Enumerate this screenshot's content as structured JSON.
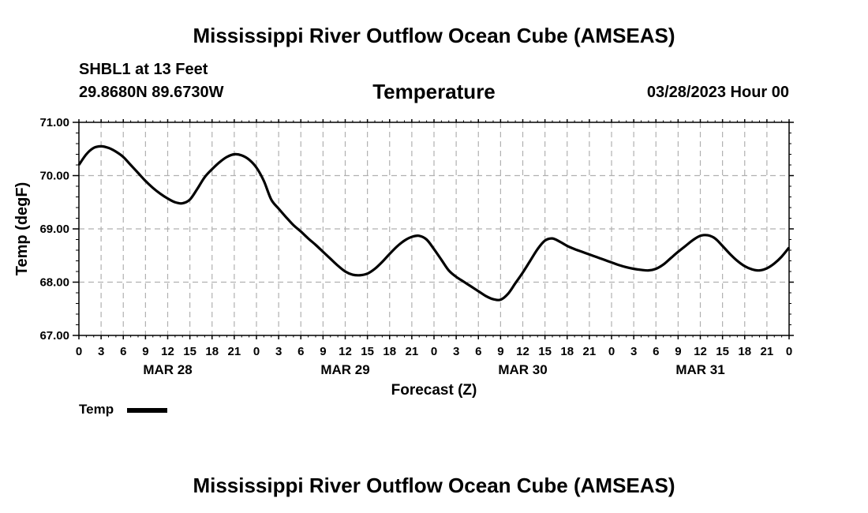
{
  "header": {
    "title": "Mississippi River Outflow Ocean Cube (AMSEAS)",
    "station": "SHBL1 at 13 Feet",
    "coords": "29.8680N  89.6730W",
    "date": "03/28/2023 Hour 00"
  },
  "footer": {
    "title": "Mississippi River Outflow Ocean Cube (AMSEAS)"
  },
  "chart_data": {
    "type": "line",
    "title": "Temperature",
    "xlabel": "Forecast (Z)",
    "ylabel": "Temp (degF)",
    "ylim": [
      67,
      71
    ],
    "xlim": [
      0,
      96
    ],
    "yticks": [
      67,
      68,
      69,
      70,
      71
    ],
    "ytick_labels": [
      "67.00",
      "68.00",
      "69.00",
      "70.00",
      "71.00"
    ],
    "xtick_hours": [
      0,
      3,
      6,
      9,
      12,
      15,
      18,
      21,
      24,
      27,
      30,
      33,
      36,
      39,
      42,
      45,
      48,
      51,
      54,
      57,
      60,
      63,
      66,
      69,
      72,
      75,
      78,
      81,
      84,
      87,
      90,
      93,
      96
    ],
    "xtick_labels": [
      "0",
      "3",
      "6",
      "9",
      "12",
      "15",
      "18",
      "21",
      "0",
      "3",
      "6",
      "9",
      "12",
      "15",
      "18",
      "21",
      "0",
      "3",
      "6",
      "9",
      "12",
      "15",
      "18",
      "21",
      "0",
      "3",
      "6",
      "9",
      "12",
      "15",
      "18",
      "21",
      "0"
    ],
    "day_labels": [
      {
        "label": "MAR 28",
        "hour": 12
      },
      {
        "label": "MAR 29",
        "hour": 36
      },
      {
        "label": "MAR 30",
        "hour": 60
      },
      {
        "label": "MAR 31",
        "hour": 84
      }
    ],
    "grid": true,
    "legend": "bottom-left",
    "series": [
      {
        "name": "Temp",
        "color": "#000000",
        "x": [
          0,
          1,
          2,
          3,
          4,
          5,
          6,
          7,
          8,
          9,
          10,
          11,
          12,
          13,
          14,
          15,
          16,
          17,
          18,
          19,
          20,
          21,
          22,
          23,
          24,
          25,
          26,
          27,
          28,
          29,
          30,
          31,
          32,
          33,
          34,
          35,
          36,
          37,
          38,
          39,
          40,
          41,
          42,
          43,
          44,
          45,
          46,
          47,
          48,
          49,
          50,
          51,
          52,
          53,
          54,
          55,
          56,
          57,
          58,
          59,
          60,
          61,
          62,
          63,
          64,
          65,
          66,
          67,
          68,
          69,
          70,
          71,
          72,
          73,
          74,
          75,
          76,
          77,
          78,
          79,
          80,
          81,
          82,
          83,
          84,
          85,
          86,
          87,
          88,
          89,
          90,
          91,
          92,
          93,
          94,
          95,
          96
        ],
        "values": [
          70.2,
          70.4,
          70.52,
          70.55,
          70.52,
          70.45,
          70.35,
          70.2,
          70.05,
          69.9,
          69.77,
          69.66,
          69.57,
          69.5,
          69.48,
          69.55,
          69.75,
          69.97,
          70.12,
          70.25,
          70.35,
          70.4,
          70.38,
          70.3,
          70.15,
          69.9,
          69.55,
          69.38,
          69.22,
          69.07,
          68.95,
          68.82,
          68.7,
          68.57,
          68.44,
          68.31,
          68.2,
          68.14,
          68.13,
          68.16,
          68.25,
          68.38,
          68.53,
          68.67,
          68.78,
          68.85,
          68.87,
          68.8,
          68.62,
          68.42,
          68.22,
          68.1,
          68.01,
          67.92,
          67.83,
          67.74,
          67.68,
          67.67,
          67.78,
          67.98,
          68.18,
          68.4,
          68.62,
          68.78,
          68.82,
          68.76,
          68.68,
          68.62,
          68.57,
          68.52,
          68.47,
          68.42,
          68.37,
          68.32,
          68.28,
          68.25,
          68.23,
          68.22,
          68.25,
          68.33,
          68.45,
          68.57,
          68.68,
          68.79,
          68.87,
          68.88,
          68.82,
          68.68,
          68.53,
          68.4,
          68.3,
          68.24,
          68.22,
          68.26,
          68.35,
          68.48,
          68.65
        ]
      }
    ]
  }
}
